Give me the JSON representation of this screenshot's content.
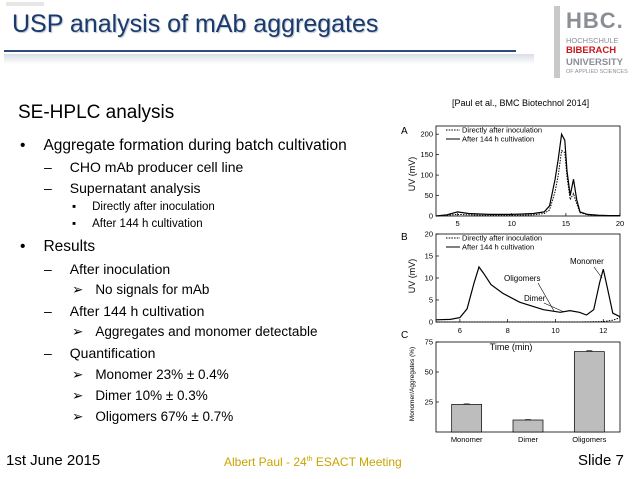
{
  "title": "USP analysis of mAb aggregates",
  "logo": {
    "name": "HBC.",
    "line1": "HOCHSCHULE",
    "line2": "BIBERACH",
    "line3": "UNIVERSITY",
    "line4": "OF APPLIED SCIENCES"
  },
  "section_heading": "SE-HPLC analysis",
  "bullets": {
    "b1": "Aggregate formation during batch cultivation",
    "b1_s1": "CHO mAb producer cell line",
    "b1_s2": "Supernatant analysis",
    "b1_s2_a": "Directly after inoculation",
    "b1_s2_b": "After 144 h cultivation",
    "b2": "Results",
    "b2_s1": "After inoculation",
    "b2_s1_a": "No signals for mAb",
    "b2_s2": "After 144 h cultivation",
    "b2_s2_a": "Aggregates and monomer detectable",
    "b2_s3": "Quantification",
    "b2_s3_a": "Monomer 23% ± 0.4%",
    "b2_s3_b": "Dimer 10% ± 0.3%",
    "b2_s3_c": "Oligomers 67% ± 0.7%"
  },
  "citation": "[Paul et al., BMC Biotechnol 2014]",
  "figure": {
    "panel_a_label": "A",
    "panel_b_label": "B",
    "panel_c_label": "C",
    "ylabel_uv": "UV (mV)",
    "xlabel_time": "Time (min)",
    "ylabel_c": "Monomer/Aggregates (%)",
    "legend_inoc": "Directly after inoculation",
    "legend_144": "After 144 h cultivation",
    "ann_oligomers": "Oligomers",
    "ann_dimer": "Dimer",
    "ann_monomer": "Monomer",
    "a_xticks": [
      "5",
      "10",
      "15",
      "20"
    ],
    "a_yticks": [
      "0",
      "50",
      "100",
      "150",
      "200"
    ],
    "b_xticks": [
      "6",
      "8",
      "10",
      "12"
    ],
    "b_yticks": [
      "0",
      "5",
      "10",
      "15",
      "20"
    ],
    "c_yticks": [
      "25",
      "50",
      "75"
    ]
  },
  "chart_data": [
    {
      "type": "line",
      "panel": "A",
      "xlabel": "",
      "ylabel": "UV (mV)",
      "xlim": [
        3,
        20
      ],
      "ylim": [
        0,
        220
      ],
      "series": [
        {
          "name": "Directly after inoculation",
          "x": [
            3,
            4,
            5,
            6,
            7,
            8,
            9,
            10,
            11,
            12,
            13,
            13.5,
            14,
            14.3,
            14.6,
            14.9,
            15.1,
            15.4,
            15.7,
            16,
            16.3,
            17,
            18,
            19,
            20
          ],
          "y": [
            0,
            2,
            4,
            3,
            2,
            2,
            2,
            2,
            2,
            3,
            6,
            15,
            60,
            100,
            160,
            155,
            95,
            40,
            55,
            30,
            8,
            3,
            1,
            1,
            1
          ]
        },
        {
          "name": "After 144 h cultivation",
          "x": [
            3,
            4,
            5,
            6,
            7,
            8,
            9,
            10,
            11,
            12,
            13,
            13.5,
            14,
            14.3,
            14.6,
            14.9,
            15.1,
            15.4,
            15.7,
            16,
            16.3,
            17,
            18,
            19,
            20
          ],
          "y": [
            0,
            3,
            10,
            6,
            5,
            4,
            4,
            4,
            5,
            6,
            10,
            25,
            90,
            140,
            200,
            185,
            110,
            50,
            90,
            40,
            10,
            4,
            2,
            1,
            1
          ]
        }
      ]
    },
    {
      "type": "line",
      "panel": "B",
      "xlabel": "Time (min)",
      "ylabel": "UV (mV)",
      "xlim": [
        5,
        12.7
      ],
      "ylim": [
        0,
        20
      ],
      "series": [
        {
          "name": "Directly after inoculation",
          "x": [
            5,
            6,
            7,
            8,
            9,
            10,
            11,
            12,
            12.4,
            12.7
          ],
          "y": [
            0,
            0,
            0,
            0,
            0,
            0,
            0,
            0.1,
            0.4,
            1
          ]
        },
        {
          "name": "After 144 h cultivation",
          "x": [
            5,
            5.6,
            6,
            6.3,
            6.6,
            6.8,
            7.0,
            7.3,
            7.8,
            8.5,
            9.5,
            10.2,
            10.6,
            11.0,
            11.3,
            11.6,
            11.85,
            12.0,
            12.2,
            12.4,
            12.7
          ],
          "y": [
            0.5,
            0.6,
            1,
            3,
            9,
            12.5,
            11,
            8.5,
            6.5,
            4.5,
            2.8,
            2.2,
            2.6,
            2.2,
            1.6,
            2.8,
            9,
            12,
            7,
            2,
            1.2
          ]
        }
      ]
    },
    {
      "type": "bar",
      "panel": "C",
      "categories": [
        "Monomer",
        "Dimer",
        "Oligomers"
      ],
      "values": [
        23,
        10,
        67
      ],
      "errors": [
        0.4,
        0.3,
        0.7
      ],
      "ylabel": "Monomer/Aggregates (%)",
      "ylim": [
        0,
        75
      ]
    }
  ],
  "footer": {
    "date": "1st June 2015",
    "center_prefix": "Albert Paul - 24",
    "center_sup": "th",
    "center_suffix": " ESACT Meeting",
    "slide_label": "Slide 7"
  }
}
